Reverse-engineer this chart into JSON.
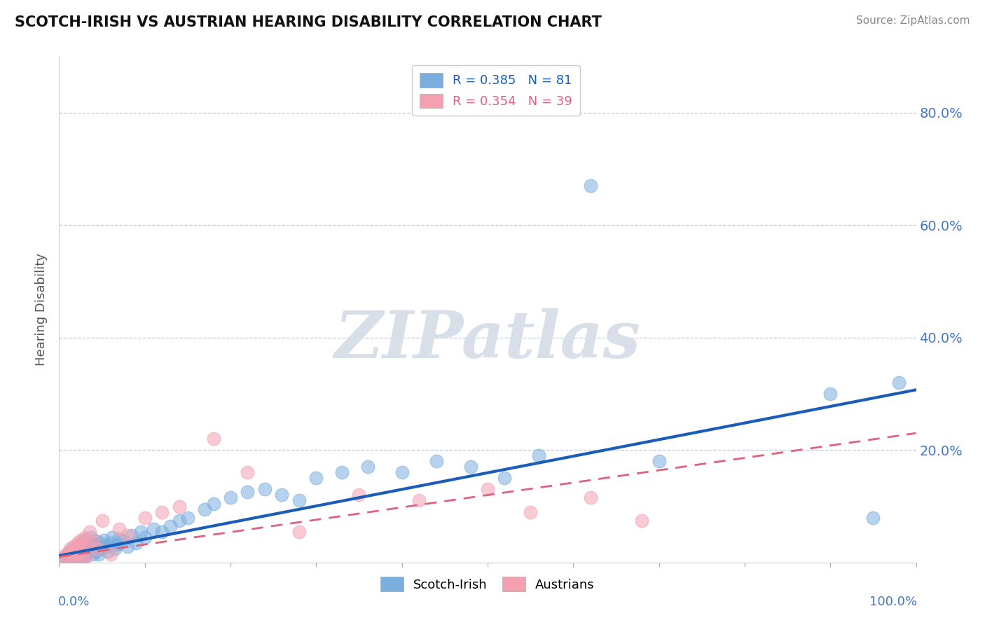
{
  "title": "SCOTCH-IRISH VS AUSTRIAN HEARING DISABILITY CORRELATION CHART",
  "source": "Source: ZipAtlas.com",
  "ylabel": "Hearing Disability",
  "y_tick_labels": [
    "20.0%",
    "40.0%",
    "60.0%",
    "80.0%"
  ],
  "y_tick_values": [
    0.2,
    0.4,
    0.6,
    0.8
  ],
  "x_range": [
    0,
    1.0
  ],
  "y_range": [
    0,
    0.9
  ],
  "legend_scotch_irish": "R = 0.385   N = 81",
  "legend_austrians": "R = 0.354   N = 39",
  "scotch_irish_color": "#7AAEDE",
  "austrian_color": "#F4A0B0",
  "scotch_irish_line_color": "#1A5CB8",
  "austrian_line_color": "#E06080",
  "regression_scotch_irish_slope": 0.295,
  "regression_scotch_irish_intercept": 0.012,
  "regression_austrian_slope": 0.22,
  "regression_austrian_intercept": 0.01,
  "background_color": "#FFFFFF",
  "grid_color": "#C0C8D8",
  "watermark_color": "#D8DFE8",
  "scotch_irish_x": [
    0.005,
    0.008,
    0.01,
    0.01,
    0.012,
    0.013,
    0.015,
    0.015,
    0.016,
    0.017,
    0.018,
    0.019,
    0.02,
    0.02,
    0.021,
    0.022,
    0.023,
    0.024,
    0.025,
    0.025,
    0.026,
    0.027,
    0.028,
    0.029,
    0.03,
    0.03,
    0.031,
    0.032,
    0.033,
    0.034,
    0.035,
    0.036,
    0.037,
    0.038,
    0.04,
    0.041,
    0.042,
    0.043,
    0.045,
    0.046,
    0.048,
    0.05,
    0.052,
    0.055,
    0.057,
    0.06,
    0.062,
    0.065,
    0.068,
    0.07,
    0.075,
    0.08,
    0.085,
    0.09,
    0.095,
    0.1,
    0.11,
    0.12,
    0.13,
    0.14,
    0.15,
    0.17,
    0.18,
    0.2,
    0.22,
    0.24,
    0.26,
    0.28,
    0.3,
    0.33,
    0.36,
    0.4,
    0.44,
    0.48,
    0.52,
    0.56,
    0.62,
    0.7,
    0.9,
    0.95,
    0.98
  ],
  "scotch_irish_y": [
    0.005,
    0.01,
    0.015,
    0.008,
    0.012,
    0.02,
    0.01,
    0.018,
    0.025,
    0.015,
    0.022,
    0.018,
    0.008,
    0.025,
    0.012,
    0.02,
    0.03,
    0.01,
    0.015,
    0.028,
    0.022,
    0.035,
    0.012,
    0.028,
    0.01,
    0.04,
    0.025,
    0.015,
    0.035,
    0.022,
    0.018,
    0.03,
    0.045,
    0.025,
    0.015,
    0.032,
    0.02,
    0.038,
    0.028,
    0.015,
    0.035,
    0.025,
    0.04,
    0.03,
    0.02,
    0.035,
    0.045,
    0.025,
    0.032,
    0.042,
    0.038,
    0.028,
    0.048,
    0.035,
    0.055,
    0.045,
    0.06,
    0.055,
    0.065,
    0.075,
    0.08,
    0.095,
    0.105,
    0.115,
    0.125,
    0.13,
    0.12,
    0.11,
    0.15,
    0.16,
    0.17,
    0.16,
    0.18,
    0.17,
    0.15,
    0.19,
    0.67,
    0.18,
    0.3,
    0.08,
    0.32
  ],
  "austrian_x": [
    0.005,
    0.008,
    0.01,
    0.012,
    0.013,
    0.015,
    0.016,
    0.018,
    0.019,
    0.02,
    0.021,
    0.022,
    0.023,
    0.024,
    0.025,
    0.026,
    0.028,
    0.03,
    0.032,
    0.034,
    0.036,
    0.04,
    0.045,
    0.05,
    0.06,
    0.07,
    0.08,
    0.1,
    0.12,
    0.14,
    0.18,
    0.22,
    0.28,
    0.35,
    0.42,
    0.5,
    0.55,
    0.62,
    0.68
  ],
  "austrian_y": [
    0.008,
    0.015,
    0.01,
    0.018,
    0.025,
    0.012,
    0.022,
    0.03,
    0.01,
    0.02,
    0.015,
    0.035,
    0.025,
    0.018,
    0.04,
    0.028,
    0.008,
    0.045,
    0.012,
    0.032,
    0.055,
    0.038,
    0.025,
    0.075,
    0.015,
    0.06,
    0.048,
    0.08,
    0.09,
    0.1,
    0.22,
    0.16,
    0.055,
    0.12,
    0.11,
    0.13,
    0.09,
    0.115,
    0.075
  ]
}
